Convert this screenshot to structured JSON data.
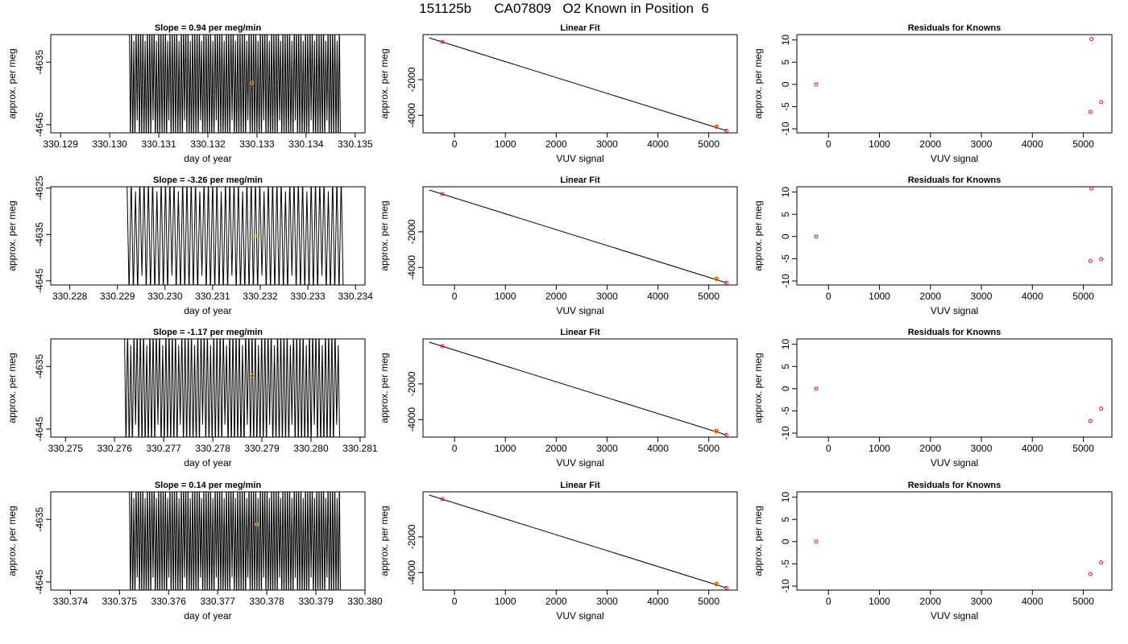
{
  "title": "151125b      CA07809   O2 Known in Position  6",
  "colors": {
    "trace": "#000000",
    "highlight": "#ffa500",
    "known": "#ff0000",
    "axis": "#000000"
  },
  "chart_data": [
    {
      "type": "line",
      "row": 0,
      "title": "Slope =  0.94  per meg/min",
      "xlabel": "day of year",
      "ylabel": "approx. per meg",
      "xlim": [
        330.1288,
        330.1352
      ],
      "ylim": [
        -4646.3,
        -4630.6
      ],
      "xticks": [
        "330.129",
        "330.130",
        "330.131",
        "330.132",
        "330.133",
        "330.134",
        "330.135"
      ],
      "xtick_values": [
        330.129,
        330.13,
        330.131,
        330.132,
        330.133,
        330.134,
        330.135
      ],
      "yticks": [
        "-4635",
        "-4645"
      ],
      "ytick_values": [
        -4635,
        -4645
      ],
      "trace_start": 330.1304,
      "trace_end": 330.1347,
      "trace_period": 4.6e-05,
      "trace_low": -4646.3,
      "trace_high": -4630.6,
      "highlight": {
        "x": 330.1329,
        "y": -4638.3
      }
    },
    {
      "type": "scatter",
      "row": 0,
      "title": "Linear Fit",
      "xlabel": "VUV signal",
      "ylabel": "approx. per meg",
      "xlim": [
        -620,
        5560
      ],
      "ylim": [
        -4980,
        520
      ],
      "xticks": [
        "0",
        "1000",
        "2000",
        "3000",
        "4000",
        "5000"
      ],
      "xtick_values": [
        0,
        1000,
        2000,
        3000,
        4000,
        5000
      ],
      "yticks": [
        "-2000",
        "-4000"
      ],
      "ytick_values": [
        -2000,
        -4000
      ],
      "line": {
        "x": [
          -500,
          5350
        ],
        "y": [
          340,
          -4860
        ]
      },
      "points": {
        "x": [
          -240,
          5140,
          5160,
          5350
        ],
        "y": [
          110,
          -4630,
          -4650,
          -4860
        ]
      },
      "highlight": {
        "x": 5150,
        "y": -4640
      }
    },
    {
      "type": "scatter",
      "row": 0,
      "title": "Residuals for Knowns",
      "xlabel": "VUV signal",
      "ylabel": "approx. per meg",
      "xlim": [
        -620,
        5560
      ],
      "ylim": [
        -10.9,
        11.2
      ],
      "xticks": [
        "0",
        "1000",
        "2000",
        "3000",
        "4000",
        "5000"
      ],
      "xtick_values": [
        0,
        1000,
        2000,
        3000,
        4000,
        5000
      ],
      "yticks": [
        "-10",
        "-5",
        "0",
        "5",
        "10"
      ],
      "ytick_values": [
        -10,
        -5,
        0,
        5,
        10
      ],
      "points": {
        "x": [
          -240,
          5140,
          5160,
          5350
        ],
        "y": [
          0,
          -6.2,
          10.2,
          -4
        ]
      }
    },
    {
      "type": "line",
      "row": 1,
      "title": "Slope =  -3.26  per meg/min",
      "xlabel": "day of year",
      "ylabel": "approx. per meg",
      "xlim": [
        330.2276,
        330.2342
      ],
      "ylim": [
        -4645.9,
        -4624.7
      ],
      "xticks": [
        "330.228",
        "330.229",
        "330.230",
        "330.231",
        "330.232",
        "330.233",
        "330.234"
      ],
      "xtick_values": [
        330.228,
        330.229,
        330.23,
        330.231,
        330.232,
        330.233,
        330.234
      ],
      "yticks": [
        "-4625",
        "-4635",
        "-4645"
      ],
      "ytick_values": [
        -4625,
        -4635,
        -4645
      ],
      "trace_start": 330.2292,
      "trace_end": 330.2337,
      "trace_period": 9e-05,
      "trace_low": -4645.9,
      "trace_high": -4624.7,
      "highlight": {
        "x": 330.2319,
        "y": -4635.3
      }
    },
    {
      "type": "scatter",
      "row": 1,
      "title": "Linear Fit",
      "xlabel": "VUV signal",
      "ylabel": "approx. per meg",
      "xlim": [
        -620,
        5560
      ],
      "ylim": [
        -4980,
        520
      ],
      "xticks": [
        "0",
        "1000",
        "2000",
        "3000",
        "4000",
        "5000"
      ],
      "xtick_values": [
        0,
        1000,
        2000,
        3000,
        4000,
        5000
      ],
      "yticks": [
        "-2000",
        "-4000"
      ],
      "ytick_values": [
        -2000,
        -4000
      ],
      "line": {
        "x": [
          -500,
          5350
        ],
        "y": [
          340,
          -4860
        ]
      },
      "points": {
        "x": [
          -240,
          5140,
          5160,
          5350
        ],
        "y": [
          110,
          -4630,
          -4650,
          -4860
        ]
      },
      "highlight": {
        "x": 5150,
        "y": -4640
      }
    },
    {
      "type": "scatter",
      "row": 1,
      "title": "Residuals for Knowns",
      "xlabel": "VUV signal",
      "ylabel": "approx. per meg",
      "xlim": [
        -620,
        5560
      ],
      "ylim": [
        -10.9,
        11.2
      ],
      "xticks": [
        "0",
        "1000",
        "2000",
        "3000",
        "4000",
        "5000"
      ],
      "xtick_values": [
        0,
        1000,
        2000,
        3000,
        4000,
        5000
      ],
      "yticks": [
        "-10",
        "-5",
        "0",
        "5",
        "10"
      ],
      "ytick_values": [
        -10,
        -5,
        0,
        5,
        10
      ],
      "points": {
        "x": [
          -240,
          5140,
          5160,
          5350
        ],
        "y": [
          0,
          -5.5,
          10.8,
          -5.1
        ]
      }
    },
    {
      "type": "line",
      "row": 2,
      "title": "Slope =  -1.17  per meg/min",
      "xlabel": "day of year",
      "ylabel": "approx. per meg",
      "xlim": [
        330.2747,
        330.2811
      ],
      "ylim": [
        -4646.3,
        -4630.6
      ],
      "xticks": [
        "330.275",
        "330.276",
        "330.277",
        "330.278",
        "330.279",
        "330.280",
        "330.281"
      ],
      "xtick_values": [
        330.275,
        330.276,
        330.277,
        330.278,
        330.279,
        330.28,
        330.281
      ],
      "yticks": [
        "-4635",
        "-4645"
      ],
      "ytick_values": [
        -4635,
        -4645
      ],
      "trace_start": 330.2762,
      "trace_end": 330.2806,
      "trace_period": 6.5e-05,
      "trace_low": -4646.3,
      "trace_high": -4630.6,
      "highlight": {
        "x": 330.2788,
        "y": -4636.5
      }
    },
    {
      "type": "scatter",
      "row": 2,
      "title": "Linear Fit",
      "xlabel": "VUV signal",
      "ylabel": "approx. per meg",
      "xlim": [
        -620,
        5560
      ],
      "ylim": [
        -4980,
        520
      ],
      "xticks": [
        "0",
        "1000",
        "2000",
        "3000",
        "4000",
        "5000"
      ],
      "xtick_values": [
        0,
        1000,
        2000,
        3000,
        4000,
        5000
      ],
      "yticks": [
        "-2000",
        "-4000"
      ],
      "ytick_values": [
        -2000,
        -4000
      ],
      "line": {
        "x": [
          -500,
          5350
        ],
        "y": [
          340,
          -4860
        ]
      },
      "points": {
        "x": [
          -240,
          5140,
          5160,
          5350
        ],
        "y": [
          110,
          -4630,
          -4650,
          -4860
        ]
      },
      "highlight": {
        "x": 5150,
        "y": -4640
      }
    },
    {
      "type": "scatter",
      "row": 2,
      "title": "Residuals for Knowns",
      "xlabel": "VUV signal",
      "ylabel": "approx. per meg",
      "xlim": [
        -620,
        5560
      ],
      "ylim": [
        -10.9,
        11.2
      ],
      "xticks": [
        "0",
        "1000",
        "2000",
        "3000",
        "4000",
        "5000"
      ],
      "xtick_values": [
        0,
        1000,
        2000,
        3000,
        4000,
        5000
      ],
      "yticks": [
        "-10",
        "-5",
        "0",
        "5",
        "10"
      ],
      "ytick_values": [
        -10,
        -5,
        0,
        5,
        10
      ],
      "points": {
        "x": [
          -240,
          5140,
          5350
        ],
        "y": [
          0,
          -7.3,
          -4.5
        ]
      }
    },
    {
      "type": "line",
      "row": 3,
      "title": "Slope =  0.14  per meg/min",
      "xlabel": "day of year",
      "ylabel": "approx. per meg",
      "xlim": [
        330.3736,
        330.38
      ],
      "ylim": [
        -4646.3,
        -4630.6
      ],
      "xticks": [
        "330.374",
        "330.375",
        "330.376",
        "330.377",
        "330.378",
        "330.379",
        "330.380"
      ],
      "xtick_values": [
        330.374,
        330.375,
        330.376,
        330.377,
        330.378,
        330.379,
        330.38
      ],
      "yticks": [
        "-4635",
        "-4645"
      ],
      "ytick_values": [
        -4635,
        -4645
      ],
      "trace_start": 330.3752,
      "trace_end": 330.3795,
      "trace_period": 4.6e-05,
      "trace_low": -4646.3,
      "trace_high": -4630.6,
      "highlight": {
        "x": 330.3778,
        "y": -4635.8
      }
    },
    {
      "type": "scatter",
      "row": 3,
      "title": "Linear Fit",
      "xlabel": "VUV signal",
      "ylabel": "approx. per meg",
      "xlim": [
        -620,
        5560
      ],
      "ylim": [
        -4980,
        520
      ],
      "xticks": [
        "0",
        "1000",
        "2000",
        "3000",
        "4000",
        "5000"
      ],
      "xtick_values": [
        0,
        1000,
        2000,
        3000,
        4000,
        5000
      ],
      "yticks": [
        "-2000",
        "-4000"
      ],
      "ytick_values": [
        -2000,
        -4000
      ],
      "line": {
        "x": [
          -500,
          5350
        ],
        "y": [
          340,
          -4860
        ]
      },
      "points": {
        "x": [
          -240,
          5140,
          5160,
          5350
        ],
        "y": [
          110,
          -4630,
          -4650,
          -4860
        ]
      },
      "highlight": {
        "x": 5150,
        "y": -4640
      }
    },
    {
      "type": "scatter",
      "row": 3,
      "title": "Residuals for Knowns",
      "xlabel": "VUV signal",
      "ylabel": "approx. per meg",
      "xlim": [
        -620,
        5560
      ],
      "ylim": [
        -10.9,
        11.2
      ],
      "xticks": [
        "0",
        "1000",
        "2000",
        "3000",
        "4000",
        "5000"
      ],
      "xtick_values": [
        0,
        1000,
        2000,
        3000,
        4000,
        5000
      ],
      "yticks": [
        "-10",
        "-5",
        "0",
        "5",
        "10"
      ],
      "ytick_values": [
        -10,
        -5,
        0,
        5,
        10
      ],
      "points": {
        "x": [
          -240,
          5140,
          5350
        ],
        "y": [
          0,
          -7.3,
          -4.7
        ]
      }
    }
  ]
}
